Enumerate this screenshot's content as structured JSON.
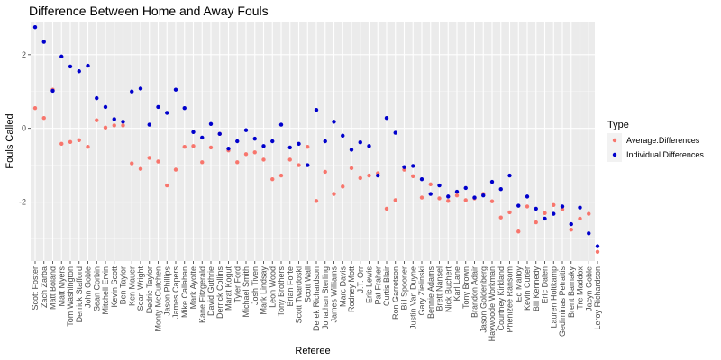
{
  "chart_data": {
    "type": "scatter",
    "title": "Difference Between Home and Away Fouls",
    "xlabel": "Referee",
    "ylabel": "Fouls Called",
    "ylim": [
      -3.6,
      2.9
    ],
    "y_ticks": [
      -2,
      0,
      2
    ],
    "grid": true,
    "legend_position": "right",
    "legend_title": "Type",
    "categories": [
      "Scott Foster",
      "Zach Zarba",
      "Matt Boland",
      "Matt Myers",
      "Tom Washington",
      "Derrick Stafford",
      "John Goble",
      "Sean Corbin",
      "Mitchell Ervin",
      "Kevin Scott",
      "Ben Taylor",
      "Ken Mauer",
      "Sean Wright",
      "Dedric Taylor",
      "Monty McCutchen",
      "Jason Phillips",
      "James Capers",
      "Mike Callahan",
      "Mark Ayotte",
      "Kane Fitzgerald",
      "David Guthrie",
      "Derrick Collins",
      "Marat Kogut",
      "Tyler Ford",
      "Michael Smith",
      "Josh Tiven",
      "Mark Lindsay",
      "Leon Wood",
      "Tony Brothers",
      "Brian Forte",
      "Scott Twardoski",
      "Scott Wall",
      "Derek Richardson",
      "Jonathan Sterling",
      "James Williams",
      "Marc Davis",
      "Rodney Mott",
      "J.T. Orr",
      "Eric Lewis",
      "Pat Fraher",
      "Curtis Blair",
      "Ron Garretson",
      "Bill Spooner",
      "Justin Van Duyne",
      "Gary Zielinski",
      "Bennie Adams",
      "Brett Nansel",
      "Nick Buchert",
      "Karl Lane",
      "Tony Brown",
      "Brandon Adair",
      "Jason Goldenberg",
      "Haywoode Workman",
      "Courtney Kirkland",
      "Phenizee Ransom",
      "Ed Malloy",
      "Kevin Cutler",
      "Bill Kennedy",
      "Eric Dalen",
      "Lauren Holtkamp",
      "Gediminas Petraitis",
      "Brent Barnaky",
      "Tre Maddox",
      "Jacyn Goble",
      "Leroy Richardson"
    ],
    "series": [
      {
        "name": "Average.Differences",
        "color": "#F8766D",
        "values": [
          0.55,
          0.28,
          1.05,
          -0.42,
          -0.37,
          -0.32,
          -0.5,
          0.22,
          0.02,
          0.08,
          0.08,
          -0.95,
          -1.1,
          -0.8,
          -0.9,
          -1.55,
          -1.12,
          -0.5,
          -0.48,
          -0.92,
          -0.52,
          -0.15,
          -0.6,
          -0.92,
          -0.7,
          -0.65,
          -0.85,
          -1.38,
          -1.28,
          -0.85,
          -1.0,
          -0.5,
          -1.97,
          -1.18,
          -1.78,
          -1.58,
          -1.08,
          -1.35,
          -1.28,
          -1.22,
          -2.18,
          -1.95,
          -1.12,
          -1.3,
          -1.88,
          -1.52,
          -1.9,
          -1.97,
          -1.82,
          -1.95,
          -1.9,
          -1.78,
          -1.98,
          -2.42,
          -2.28,
          -2.8,
          -2.12,
          -2.55,
          -2.3,
          -2.08,
          -2.2,
          -2.75,
          -2.45,
          -2.32,
          -3.35
        ]
      },
      {
        "name": "Individual.Differences",
        "color": "#0000CC",
        "values": [
          2.75,
          2.35,
          1.02,
          1.95,
          1.68,
          1.55,
          1.7,
          0.82,
          0.58,
          0.25,
          0.18,
          1.0,
          1.08,
          0.1,
          0.58,
          0.42,
          1.05,
          0.55,
          -0.1,
          -0.25,
          0.12,
          -0.15,
          -0.55,
          -0.35,
          -0.05,
          -0.28,
          -0.48,
          -0.35,
          0.1,
          -0.52,
          -0.42,
          -1.0,
          0.5,
          -0.35,
          0.18,
          -0.2,
          -0.58,
          -0.38,
          -0.48,
          -1.28,
          0.28,
          -0.12,
          -1.05,
          -1.02,
          -1.38,
          -1.78,
          -1.55,
          -1.85,
          -1.72,
          -1.62,
          -1.88,
          -1.82,
          -1.45,
          -1.65,
          -1.28,
          -2.1,
          -1.85,
          -2.18,
          -2.45,
          -2.32,
          -2.12,
          -2.6,
          -2.15,
          -2.85,
          -3.2
        ]
      }
    ]
  }
}
